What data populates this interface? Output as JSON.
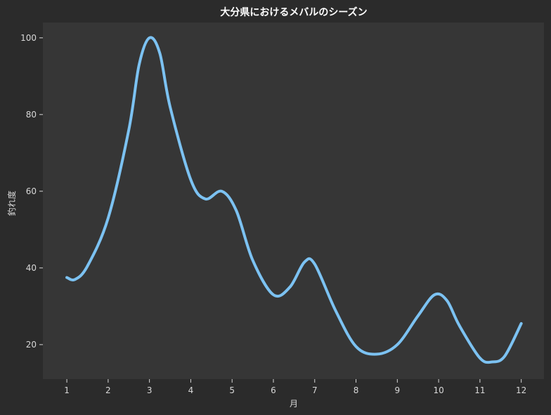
{
  "chart_data": {
    "type": "line",
    "title": "大分県におけるメバルのシーズン",
    "xlabel": "月",
    "ylabel": "釣れ度",
    "x_ticks": [
      "1",
      "2",
      "3",
      "4",
      "5",
      "6",
      "7",
      "8",
      "9",
      "10",
      "11",
      "12"
    ],
    "y_ticks": [
      "20",
      "40",
      "60",
      "80",
      "100"
    ],
    "xlim": [
      0.42,
      12.55
    ],
    "ylim": [
      11,
      104
    ],
    "grid": false,
    "legend": "none",
    "series": [
      {
        "color": "#7cc2f2",
        "points": [
          [
            1.0,
            37.5
          ],
          [
            1.2,
            37.0
          ],
          [
            1.5,
            40.5
          ],
          [
            2.0,
            53.0
          ],
          [
            2.5,
            76.0
          ],
          [
            2.75,
            93.0
          ],
          [
            3.0,
            100.0
          ],
          [
            3.25,
            96.0
          ],
          [
            3.5,
            82.0
          ],
          [
            4.0,
            63.0
          ],
          [
            4.35,
            58.0
          ],
          [
            4.75,
            60.0
          ],
          [
            5.1,
            55.0
          ],
          [
            5.5,
            42.0
          ],
          [
            6.0,
            33.0
          ],
          [
            6.4,
            35.0
          ],
          [
            6.75,
            41.5
          ],
          [
            7.0,
            41.0
          ],
          [
            7.5,
            29.0
          ],
          [
            8.0,
            19.5
          ],
          [
            8.5,
            17.5
          ],
          [
            9.0,
            20.0
          ],
          [
            9.5,
            27.5
          ],
          [
            9.9,
            33.0
          ],
          [
            10.2,
            31.5
          ],
          [
            10.5,
            25.0
          ],
          [
            11.0,
            16.5
          ],
          [
            11.3,
            15.5
          ],
          [
            11.6,
            17.0
          ],
          [
            12.0,
            25.5
          ]
        ]
      }
    ],
    "colors": {
      "figure_background": "#2b2b2b",
      "plot_background": "#363636",
      "text": "#d8d8d8"
    }
  }
}
